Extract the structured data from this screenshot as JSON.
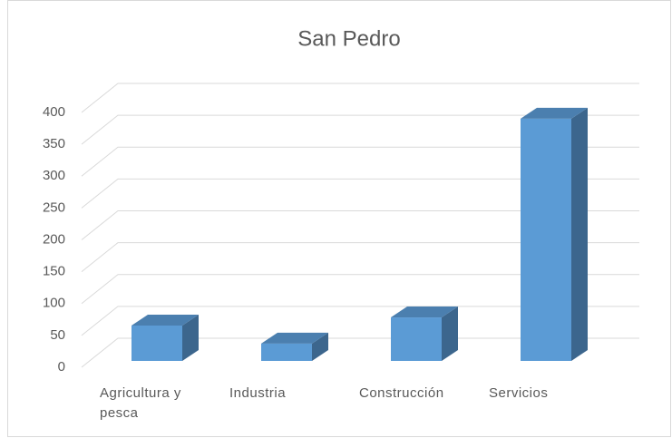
{
  "chart_data": {
    "type": "bar3d",
    "title": "San Pedro",
    "categories": [
      "Agricultura y pesca",
      "Industria",
      "Construcción",
      "Servicios"
    ],
    "values": [
      57,
      28,
      70,
      390
    ],
    "color": "#5b9bd5",
    "ylim": [
      0,
      400
    ],
    "yticks": [
      0,
      50,
      100,
      150,
      200,
      250,
      300,
      350,
      400
    ],
    "grid": true
  }
}
